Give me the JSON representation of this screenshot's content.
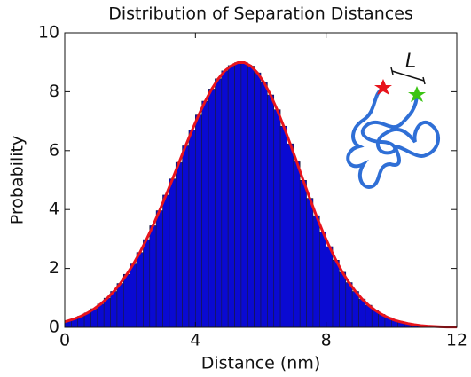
{
  "chart_data": {
    "type": "histogram",
    "title": "Distribution of Separation Distances",
    "x_label": "Distance (nm)",
    "y_label": "Probability",
    "bins": [
      0,
      0.2,
      0.4,
      0.6,
      0.8,
      1.0,
      1.2,
      1.4,
      1.6,
      1.8,
      2.0,
      2.2,
      2.4,
      2.6,
      2.8,
      3.0,
      3.2,
      3.4,
      3.6,
      3.8,
      4.0,
      4.2,
      4.4,
      4.6,
      4.8,
      5.0,
      5.2,
      5.4,
      5.6,
      5.8,
      6.0,
      6.2,
      6.4,
      6.6,
      6.8,
      7.0,
      7.2,
      7.4,
      7.6,
      7.8,
      8.0,
      8.2,
      8.4,
      8.6,
      8.8,
      9.0,
      9.2,
      9.4,
      9.6,
      9.8,
      10.0,
      10.2,
      10.4,
      10.6,
      10.8,
      11.0,
      11.2,
      11.4,
      11.6,
      11.8,
      12.0
    ],
    "values": [
      0.22,
      0.29,
      0.38,
      0.49,
      0.63,
      0.79,
      0.99,
      1.22,
      1.49,
      1.8,
      2.15,
      2.54,
      2.98,
      3.45,
      3.96,
      4.49,
      5.04,
      5.6,
      6.16,
      6.7,
      7.21,
      7.68,
      8.09,
      8.44,
      8.71,
      8.89,
      8.99,
      8.99,
      8.87,
      8.64,
      8.31,
      7.89,
      7.39,
      6.83,
      6.23,
      5.62,
      4.99,
      4.38,
      3.79,
      3.24,
      2.74,
      2.28,
      1.87,
      1.52,
      1.22,
      0.96,
      0.75,
      0.58,
      0.44,
      0.33,
      0.24,
      0.18,
      0.13,
      0.09,
      0.06,
      0.04,
      0.03,
      0.02,
      0.01,
      0.01
    ],
    "color": "#0a0ad2",
    "edge_color": "#1a1a3a",
    "fit": {
      "color": "#e8141c",
      "x": [
        0,
        0.1,
        0.3,
        0.5,
        0.7,
        0.9,
        1.1,
        1.3,
        1.5,
        1.7,
        1.9,
        2.1,
        2.3,
        2.5,
        2.7,
        2.9,
        3.1,
        3.3,
        3.5,
        3.7,
        3.9,
        4.1,
        4.3,
        4.5,
        4.7,
        4.9,
        5.1,
        5.3,
        5.5,
        5.7,
        5.9,
        6.1,
        6.3,
        6.5,
        6.7,
        6.9,
        7.1,
        7.3,
        7.5,
        7.7,
        7.9,
        8.1,
        8.3,
        8.5,
        8.7,
        8.9,
        9.1,
        9.3,
        9.5,
        9.7,
        9.9,
        10.1,
        10.3,
        10.5,
        10.7,
        10.9,
        11.1,
        11.3,
        11.5,
        11.7,
        11.9,
        12
      ],
      "y": [
        0.19,
        0.22,
        0.29,
        0.38,
        0.49,
        0.63,
        0.79,
        0.99,
        1.22,
        1.49,
        1.8,
        2.15,
        2.54,
        2.98,
        3.45,
        3.96,
        4.49,
        5.04,
        5.6,
        6.16,
        6.7,
        7.21,
        7.68,
        8.09,
        8.44,
        8.71,
        8.89,
        8.99,
        8.99,
        8.87,
        8.64,
        8.31,
        7.89,
        7.39,
        6.83,
        6.23,
        5.62,
        4.99,
        4.38,
        3.79,
        3.24,
        2.74,
        2.28,
        1.87,
        1.52,
        1.22,
        0.96,
        0.75,
        0.58,
        0.44,
        0.33,
        0.24,
        0.18,
        0.13,
        0.09,
        0.06,
        0.04,
        0.03,
        0.02,
        0.01,
        0.01,
        0.01
      ]
    },
    "xlim": [
      0,
      12
    ],
    "ylim": [
      0,
      10
    ],
    "xticks": [
      0,
      4,
      8,
      12
    ],
    "yticks": [
      0,
      2,
      4,
      6,
      8,
      10
    ],
    "inset": {
      "label": "L"
    }
  }
}
